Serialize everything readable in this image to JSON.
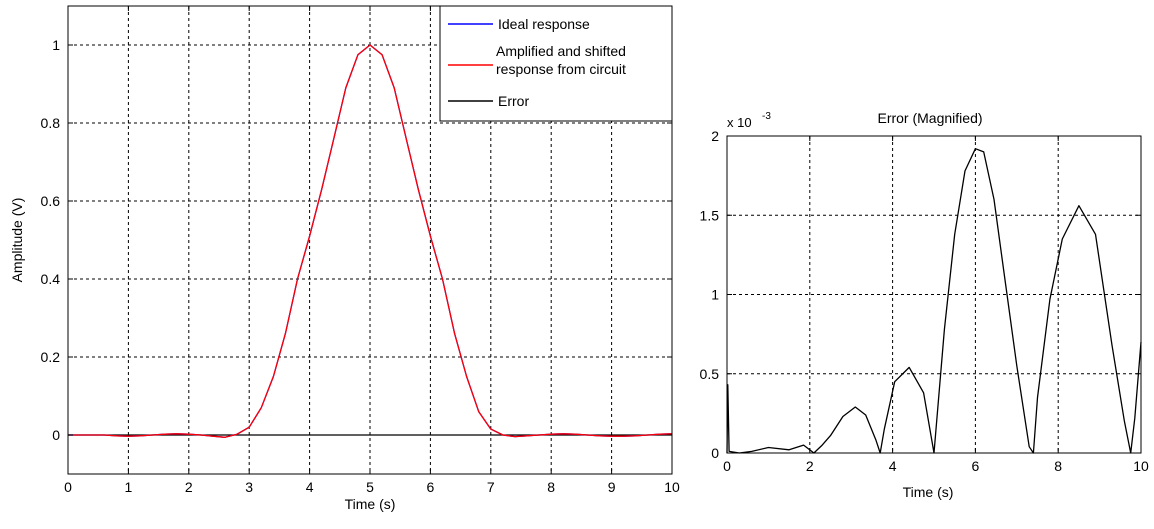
{
  "chart_data": [
    {
      "type": "line",
      "title": "",
      "xlabel": "Time (s)",
      "ylabel": "Amplitude (V)",
      "xlim": [
        0,
        10
      ],
      "ylim": [
        -0.1,
        1.1
      ],
      "xticks": [
        "0",
        "1",
        "2",
        "3",
        "4",
        "5",
        "6",
        "7",
        "8",
        "9",
        "10"
      ],
      "yticks": [
        "0",
        "0.2",
        "0.4",
        "0.6",
        "0.8",
        "1"
      ],
      "grid": true,
      "legend": {
        "placement": "top-right"
      },
      "series": [
        {
          "name": "Ideal response",
          "color": "#0000ff",
          "x": [
            0.0,
            0.2,
            0.4,
            0.6,
            0.8,
            1.0,
            1.2,
            1.4,
            1.6,
            1.8,
            2.0,
            2.2,
            2.4,
            2.6,
            2.8,
            3.0,
            3.2,
            3.4,
            3.6,
            3.8,
            4.0,
            4.2,
            4.4,
            4.6,
            4.8,
            5.0,
            5.2,
            5.4,
            5.6,
            5.8,
            6.0,
            6.2,
            6.4,
            6.6,
            6.8,
            7.0,
            7.2,
            7.4,
            7.6,
            7.8,
            8.0,
            8.2,
            8.4,
            8.6,
            8.8,
            9.0,
            9.2,
            9.4,
            9.6,
            9.8,
            10.0
          ],
          "y": [
            0.0,
            0.0,
            0.0,
            0.0,
            -0.002,
            -0.003,
            -0.002,
            0.0,
            0.002,
            0.003,
            0.002,
            0.0,
            -0.003,
            -0.006,
            0.002,
            0.02,
            0.07,
            0.15,
            0.26,
            0.4,
            0.51,
            0.63,
            0.76,
            0.89,
            0.975,
            1.0,
            0.975,
            0.89,
            0.76,
            0.63,
            0.51,
            0.4,
            0.26,
            0.15,
            0.06,
            0.015,
            0.0,
            -0.004,
            -0.002,
            0.0,
            0.002,
            0.003,
            0.002,
            0.0,
            -0.002,
            -0.003,
            -0.003,
            -0.002,
            0.0,
            0.002,
            0.003
          ]
        },
        {
          "name": "Amplified and shifted response from circuit",
          "color": "#ff0000",
          "x": [
            0.0,
            0.2,
            0.4,
            0.6,
            0.8,
            1.0,
            1.2,
            1.4,
            1.6,
            1.8,
            2.0,
            2.2,
            2.4,
            2.6,
            2.8,
            3.0,
            3.2,
            3.4,
            3.6,
            3.8,
            4.0,
            4.2,
            4.4,
            4.6,
            4.8,
            5.0,
            5.2,
            5.4,
            5.6,
            5.8,
            6.0,
            6.2,
            6.4,
            6.6,
            6.8,
            7.0,
            7.2,
            7.4,
            7.6,
            7.8,
            8.0,
            8.2,
            8.4,
            8.6,
            8.8,
            9.0,
            9.2,
            9.4,
            9.6,
            9.8,
            10.0
          ],
          "y": [
            0.0,
            0.0,
            0.0,
            0.0,
            -0.002,
            -0.003,
            -0.002,
            0.0,
            0.002,
            0.003,
            0.002,
            0.0,
            -0.003,
            -0.006,
            0.002,
            0.02,
            0.07,
            0.15,
            0.26,
            0.4,
            0.51,
            0.63,
            0.76,
            0.89,
            0.975,
            1.0,
            0.975,
            0.89,
            0.76,
            0.63,
            0.51,
            0.4,
            0.26,
            0.15,
            0.06,
            0.015,
            0.0,
            -0.004,
            -0.002,
            0.0,
            0.002,
            0.003,
            0.002,
            0.0,
            -0.002,
            -0.003,
            -0.003,
            -0.002,
            0.0,
            0.002,
            0.003
          ]
        },
        {
          "name": "Error",
          "color": "#000000",
          "x": [
            0,
            10
          ],
          "y": [
            0.0,
            0.0
          ]
        }
      ]
    },
    {
      "type": "line",
      "title": "Error (Magnified)",
      "xlabel": "Time (s)",
      "ylabel": "",
      "scale_label": "x 10",
      "scale_exponent": "-3",
      "xlim": [
        0,
        10
      ],
      "ylim": [
        0,
        2
      ],
      "xticks": [
        "0",
        "2",
        "4",
        "6",
        "8",
        "10"
      ],
      "yticks": [
        "0",
        "0.5",
        "1",
        "1.5",
        "2"
      ],
      "grid": true,
      "series": [
        {
          "color": "#000000",
          "x": [
            0.0,
            0.02,
            0.05,
            0.3,
            0.6,
            1.0,
            1.5,
            1.85,
            2.1,
            2.3,
            2.5,
            2.8,
            3.1,
            3.35,
            3.6,
            3.7,
            3.8,
            4.05,
            4.4,
            4.75,
            5.0,
            5.25,
            5.5,
            5.75,
            6.0,
            6.2,
            6.45,
            6.7,
            7.0,
            7.3,
            7.4,
            7.5,
            7.8,
            8.1,
            8.5,
            8.9,
            9.3,
            9.6,
            9.75,
            9.85,
            10.0
          ],
          "y": [
            0.0,
            0.43,
            0.01,
            0.0,
            0.01,
            0.035,
            0.02,
            0.05,
            0.0,
            0.05,
            0.11,
            0.23,
            0.29,
            0.24,
            0.08,
            0.0,
            0.15,
            0.45,
            0.54,
            0.38,
            0.0,
            0.78,
            1.38,
            1.78,
            1.92,
            1.9,
            1.6,
            1.12,
            0.55,
            0.04,
            0.0,
            0.35,
            0.97,
            1.35,
            1.56,
            1.38,
            0.68,
            0.2,
            0.0,
            0.22,
            0.7
          ]
        }
      ]
    }
  ]
}
